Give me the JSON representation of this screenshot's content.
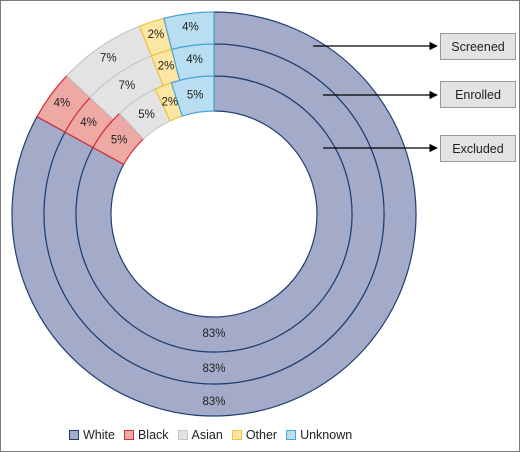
{
  "chart_data": {
    "type": "donut",
    "categories": [
      "White",
      "Black",
      "Asian",
      "Other",
      "Unknown"
    ],
    "colors": {
      "White": "#a3abc9",
      "Black": "#eea9a5",
      "Asian": "#e3e3e3",
      "Other": "#fbe6a5",
      "Unknown": "#b9ddf1"
    },
    "edge_colors": {
      "White": "#1f3f73",
      "Black": "#d42e3a",
      "Asian": "#c8c8c8",
      "Other": "#f0c33c",
      "Unknown": "#4aa5d8"
    },
    "series": [
      {
        "name": "Screened",
        "values": [
          83,
          4,
          7,
          2,
          4
        ],
        "labels": [
          "83%",
          "4%",
          "7%",
          "2%",
          "4%"
        ]
      },
      {
        "name": "Enrolled",
        "values": [
          83,
          4,
          7,
          2,
          4
        ],
        "labels": [
          "83%",
          "4%",
          "7%",
          "2%",
          "4%"
        ]
      },
      {
        "name": "Excluded",
        "values": [
          83,
          5,
          5,
          2,
          5
        ],
        "labels": [
          "83%",
          "5%",
          "5%",
          "2%",
          "5%"
        ]
      }
    ],
    "ring_order": "outer-to-inner",
    "legend": {
      "placement": "bottom"
    }
  }
}
